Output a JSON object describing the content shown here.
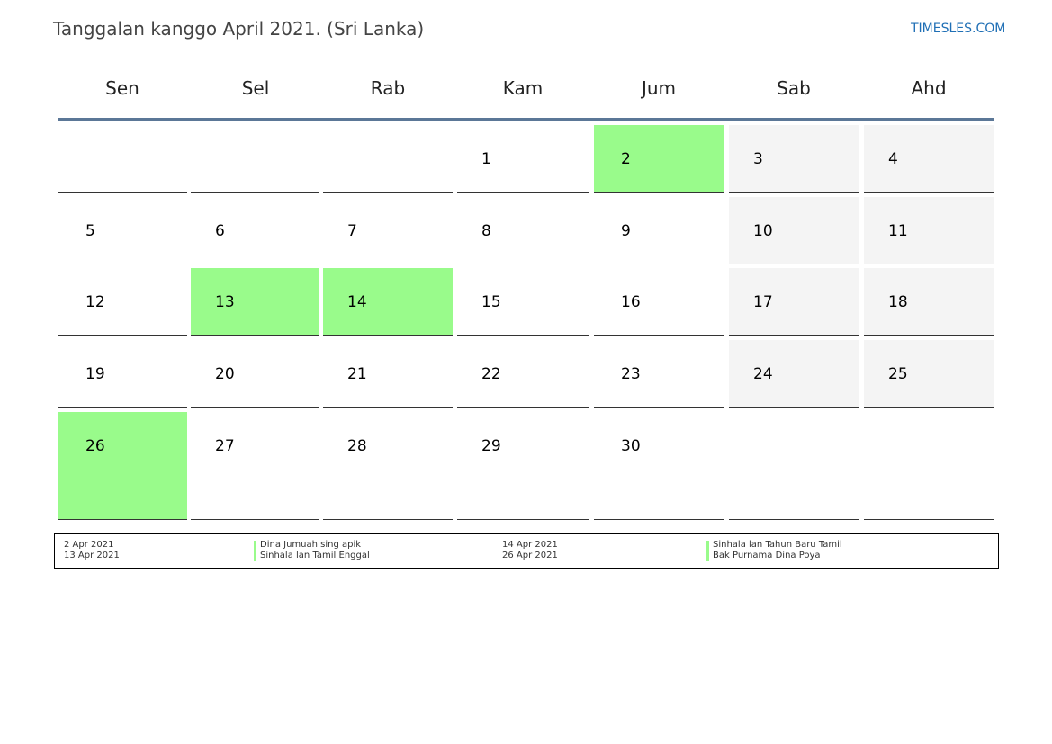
{
  "header": {
    "title": "Tanggalan kanggo April 2021. (Sri Lanka)",
    "site": "TIMESLES.COM"
  },
  "weekdays": [
    "Sen",
    "Sel",
    "Rab",
    "Kam",
    "Jum",
    "Sab",
    "Ahd"
  ],
  "calendar": {
    "weeks": [
      [
        "",
        "",
        "",
        "1",
        "2",
        "3",
        "4"
      ],
      [
        "5",
        "6",
        "7",
        "8",
        "9",
        "10",
        "11"
      ],
      [
        "12",
        "13",
        "14",
        "15",
        "16",
        "17",
        "18"
      ],
      [
        "19",
        "20",
        "21",
        "22",
        "23",
        "24",
        "25"
      ],
      [
        "26",
        "27",
        "28",
        "29",
        "30",
        "",
        ""
      ]
    ],
    "holidays": [
      "2",
      "13",
      "14",
      "26"
    ],
    "holiday_color": "#99fb8b",
    "weekend_color": "#f4f4f4"
  },
  "legend": [
    {
      "date": "2 Apr 2021",
      "name": "Dina Jumuah sing apik"
    },
    {
      "date": "13 Apr 2021",
      "name": "Sinhala lan Tamil Enggal"
    },
    {
      "date": "14 Apr 2021",
      "name": "Sinhala lan Tahun Baru Tamil"
    },
    {
      "date": "26 Apr 2021",
      "name": "Bak Purnama Dina Poya"
    }
  ]
}
